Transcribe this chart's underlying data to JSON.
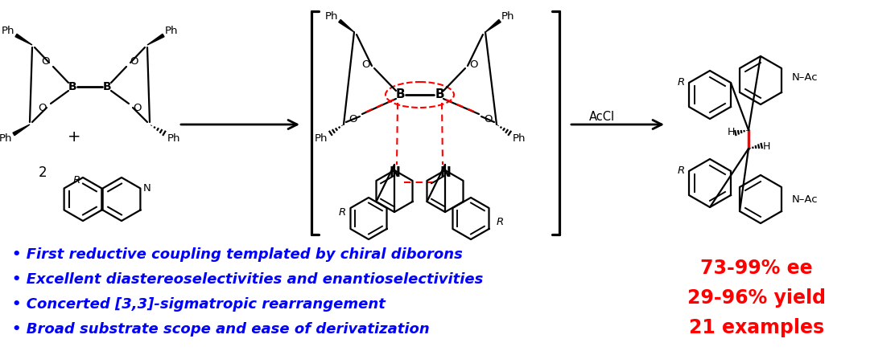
{
  "bullet_points": [
    "• First reductive coupling templated by chiral diborons",
    "• Excellent diastereoselectivities and enantioselectivities",
    "• Concerted [3,3]-sigmatropic rearrangement",
    "• Broad substrate scope and ease of derivatization"
  ],
  "red_lines": [
    "73-99% ee",
    "29-96% yield",
    "21 examples"
  ],
  "blue_color": "#0000FF",
  "red_color": "#FF0000",
  "background": "#FFFFFF",
  "bullet_fontsize": 13.0,
  "red_fontsize": 17,
  "fig_width": 11.12,
  "fig_height": 4.42,
  "dpi": 100
}
